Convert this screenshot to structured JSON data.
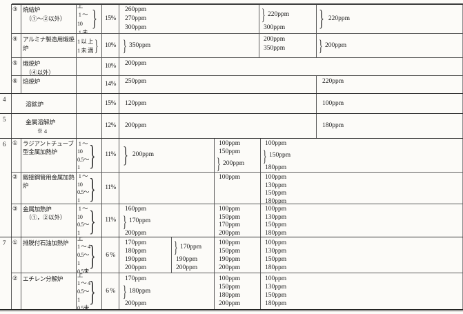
{
  "glyphs": {
    "brace": "}"
  },
  "table": {
    "f3": {
      "sub": "③",
      "name": "焼結炉\n　（①～②以外）",
      "sizes": "10 以 上\n 1 ～ 10\n 1 未 満",
      "pct": "15%",
      "ppm1": "260ppm\n270ppm\n300ppm",
      "ppm2a": "220ppm",
      "ppm2b": "300ppm",
      "ppm3": "220ppm"
    },
    "f4": {
      "sub": "④",
      "name": "アルミナ製造用煆焼\n炉",
      "sizes": "1 以 上\n1 未 満",
      "pct": "10%",
      "ppm1": "350ppm",
      "ppm2": "200ppm\n350ppm",
      "ppm3": "200ppm"
    },
    "f5": {
      "sub": "⑤",
      "name": "煆焼炉\n　（④以外）",
      "pct": "10%",
      "ppm1": "200ppm"
    },
    "f6": {
      "sub": "⑥",
      "name": "焙焼炉",
      "pct": "14%",
      "ppm1": "250ppm",
      "ppm2": "220ppm"
    },
    "r4": {
      "num": "4",
      "name": "溶鉱炉",
      "pct": "15%",
      "ppm1": "120ppm",
      "ppm2": "100ppm"
    },
    "r5": {
      "num": "5",
      "name": "金属溶解炉",
      "note": "　　※ 4",
      "pct": "12%",
      "ppm1": "200ppm",
      "ppm2": "180ppm"
    },
    "s6": {
      "num": "6"
    },
    "s61": {
      "sub": "①",
      "name": "ラジアントチューブ\n型金属加熱炉",
      "sizes": "10 以 上\n 1 ～ 10\n0.5～ 1\n0.5未 満",
      "pct": "11%",
      "ppm1": "200ppm",
      "ppm2a": "100ppm\n150ppm",
      "ppm2b": "200ppm",
      "ppm3a": "100ppm",
      "ppm3b": "150ppm",
      "ppm3c": "180ppm"
    },
    "s62": {
      "sub": "②",
      "name": "鍛接鋼管用金属加熱\n炉",
      "sizes": "10 以 上\n 1 ～ 10\n0.5～ 1\n0.5未 満",
      "pct": "11%",
      "ppm2": "100ppm",
      "ppm3": "100ppm\n130ppm\n150ppm\n180ppm"
    },
    "s63": {
      "sub": "③",
      "name": "金属加熱炉\n　（①，②以外）",
      "sizes": "10 以 上\n 1 ～ 10\n0.5～ 1\n0.5未 満",
      "pct": "11%",
      "ppm1a": "160ppm",
      "ppm1b": "170ppm",
      "ppm1c": "200ppm",
      "ppm2": "100ppm\n150ppm\n170ppm\n200ppm",
      "ppm3": "100ppm\n130ppm\n150ppm\n180ppm"
    },
    "s7": {
      "num": "7"
    },
    "s71": {
      "sub": "①",
      "name": "排脱付石油加熱炉",
      "sizes": "4 以 上\n1 ～ 4\n0.5～ 1\n0.5未 満",
      "pct": "6 %",
      "ppm1": "170ppm\n180ppm\n190ppm\n200ppm",
      "ppm1ba": "170ppm",
      "ppm1bb": "190ppm\n200ppm",
      "ppm2": "100ppm\n150ppm\n190ppm\n200ppm",
      "ppm3": "100ppm\n130ppm\n150ppm\n180ppm"
    },
    "s72": {
      "sub": "②",
      "name": "エチレン分解炉",
      "sizes": "4 以 上\n1 ～ 4\n0.5～ 1\n0.5未 満",
      "pct": "6 %",
      "ppm1a": "170ppm",
      "ppm1b": "180ppm",
      "ppm1c": "200ppm",
      "ppm2": "100ppm\n150ppm\n180ppm\n200ppm",
      "ppm3": "100ppm\n130ppm\n150ppm\n180ppm"
    }
  }
}
